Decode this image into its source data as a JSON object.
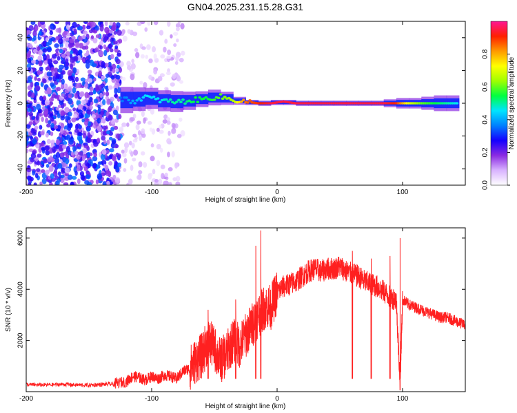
{
  "chart_data": [
    {
      "type": "heatmap",
      "title": "GN04.2025.231.15.28.G31",
      "xlabel": "Height of straight line (km)",
      "ylabel": "Frequency (Hz)",
      "xlim": [
        -200,
        150
      ],
      "ylim": [
        -50,
        50
      ],
      "x_ticks": [
        -200,
        -100,
        0,
        100
      ],
      "y_ticks": [
        -40,
        -20,
        0,
        20,
        40
      ],
      "colorbar": {
        "label": "Normalized spectral amplitude",
        "range": [
          0,
          1
        ],
        "ticks": [
          0.0,
          0.2,
          0.4,
          0.6,
          0.8
        ],
        "colormap": [
          "#ffffff",
          "#d9b3ff",
          "#8a2be2",
          "#1400ff",
          "#0080ff",
          "#00e5ff",
          "#00ff40",
          "#a0ff00",
          "#ffff00",
          "#ff9900",
          "#ff2000",
          "#ff1493"
        ]
      },
      "scatter_region_x": [
        -200,
        -75
      ],
      "ridge": {
        "x": [
          -125,
          -115,
          -105,
          -95,
          -85,
          -75,
          -65,
          -55,
          -45,
          -35,
          -25,
          -15,
          -5,
          5,
          15,
          25,
          35,
          45,
          55,
          65,
          75,
          85,
          95,
          105,
          115,
          125,
          135,
          145
        ],
        "freq": [
          3,
          1,
          4,
          2,
          1,
          1,
          2,
          3,
          4,
          2,
          1,
          0,
          0,
          1,
          0,
          0,
          0,
          0,
          0,
          0,
          0,
          0,
          0,
          0,
          0,
          0,
          0,
          0
        ],
        "amplitude": [
          0.35,
          0.4,
          0.45,
          0.45,
          0.5,
          0.5,
          0.55,
          0.55,
          0.6,
          0.65,
          0.85,
          0.9,
          0.95,
          0.95,
          0.95,
          0.95,
          0.95,
          0.95,
          0.95,
          0.95,
          0.95,
          0.95,
          0.9,
          0.7,
          0.6,
          0.55,
          0.5,
          0.45
        ],
        "halfwidth": [
          5,
          5,
          4,
          4,
          4,
          4,
          3,
          3,
          3,
          2,
          1,
          1,
          1,
          1,
          1,
          1,
          1,
          1,
          1,
          1,
          1,
          1,
          2,
          2,
          2,
          3,
          3,
          3
        ]
      },
      "grid": false
    },
    {
      "type": "line",
      "xlabel": "Height of straight line (km)",
      "ylabel": "SNR (10 * v/v)",
      "xlim": [
        -200,
        150
      ],
      "ylim": [
        0,
        6400
      ],
      "x_ticks": [
        -200,
        -100,
        0,
        100
      ],
      "y_ticks": [
        2000,
        4000,
        6000
      ],
      "series": [
        {
          "color": "#ff2020",
          "x": [
            -200,
            -190,
            -180,
            -170,
            -160,
            -150,
            -140,
            -130,
            -120,
            -115,
            -110,
            -105,
            -100,
            -95,
            -90,
            -85,
            -80,
            -75,
            -70,
            -65,
            -60,
            -55,
            -50,
            -45,
            -40,
            -35,
            -30,
            -25,
            -20,
            -15,
            -10,
            -5,
            0,
            5,
            10,
            15,
            20,
            25,
            30,
            35,
            40,
            45,
            50,
            55,
            60,
            65,
            70,
            75,
            80,
            85,
            90,
            95,
            98,
            100,
            105,
            110,
            115,
            120,
            125,
            130,
            135,
            140,
            145,
            150
          ],
          "y": [
            280,
            260,
            270,
            290,
            260,
            250,
            280,
            300,
            400,
            600,
            550,
            450,
            600,
            500,
            650,
            600,
            500,
            800,
            900,
            1200,
            1400,
            2000,
            1700,
            1200,
            1500,
            2000,
            1800,
            2200,
            2600,
            3000,
            3300,
            3300,
            3900,
            4100,
            4200,
            4300,
            4500,
            4700,
            4800,
            4700,
            4800,
            4800,
            4900,
            4700,
            4600,
            4500,
            4300,
            4200,
            4100,
            3900,
            3700,
            3600,
            300,
            3600,
            3400,
            3300,
            3200,
            3100,
            3000,
            2900,
            2900,
            2800,
            2700,
            2600
          ],
          "spikes": [
            {
              "x": -13,
              "y": 6300
            },
            {
              "x": -17,
              "y": 5700
            },
            {
              "x": -33,
              "y": 3600
            },
            {
              "x": -55,
              "y": 3200
            },
            {
              "x": 60,
              "y": 5500
            },
            {
              "x": 75,
              "y": 5200
            },
            {
              "x": 90,
              "y": 5300
            },
            {
              "x": 98,
              "y": 6000
            }
          ]
        }
      ],
      "grid": false
    }
  ]
}
